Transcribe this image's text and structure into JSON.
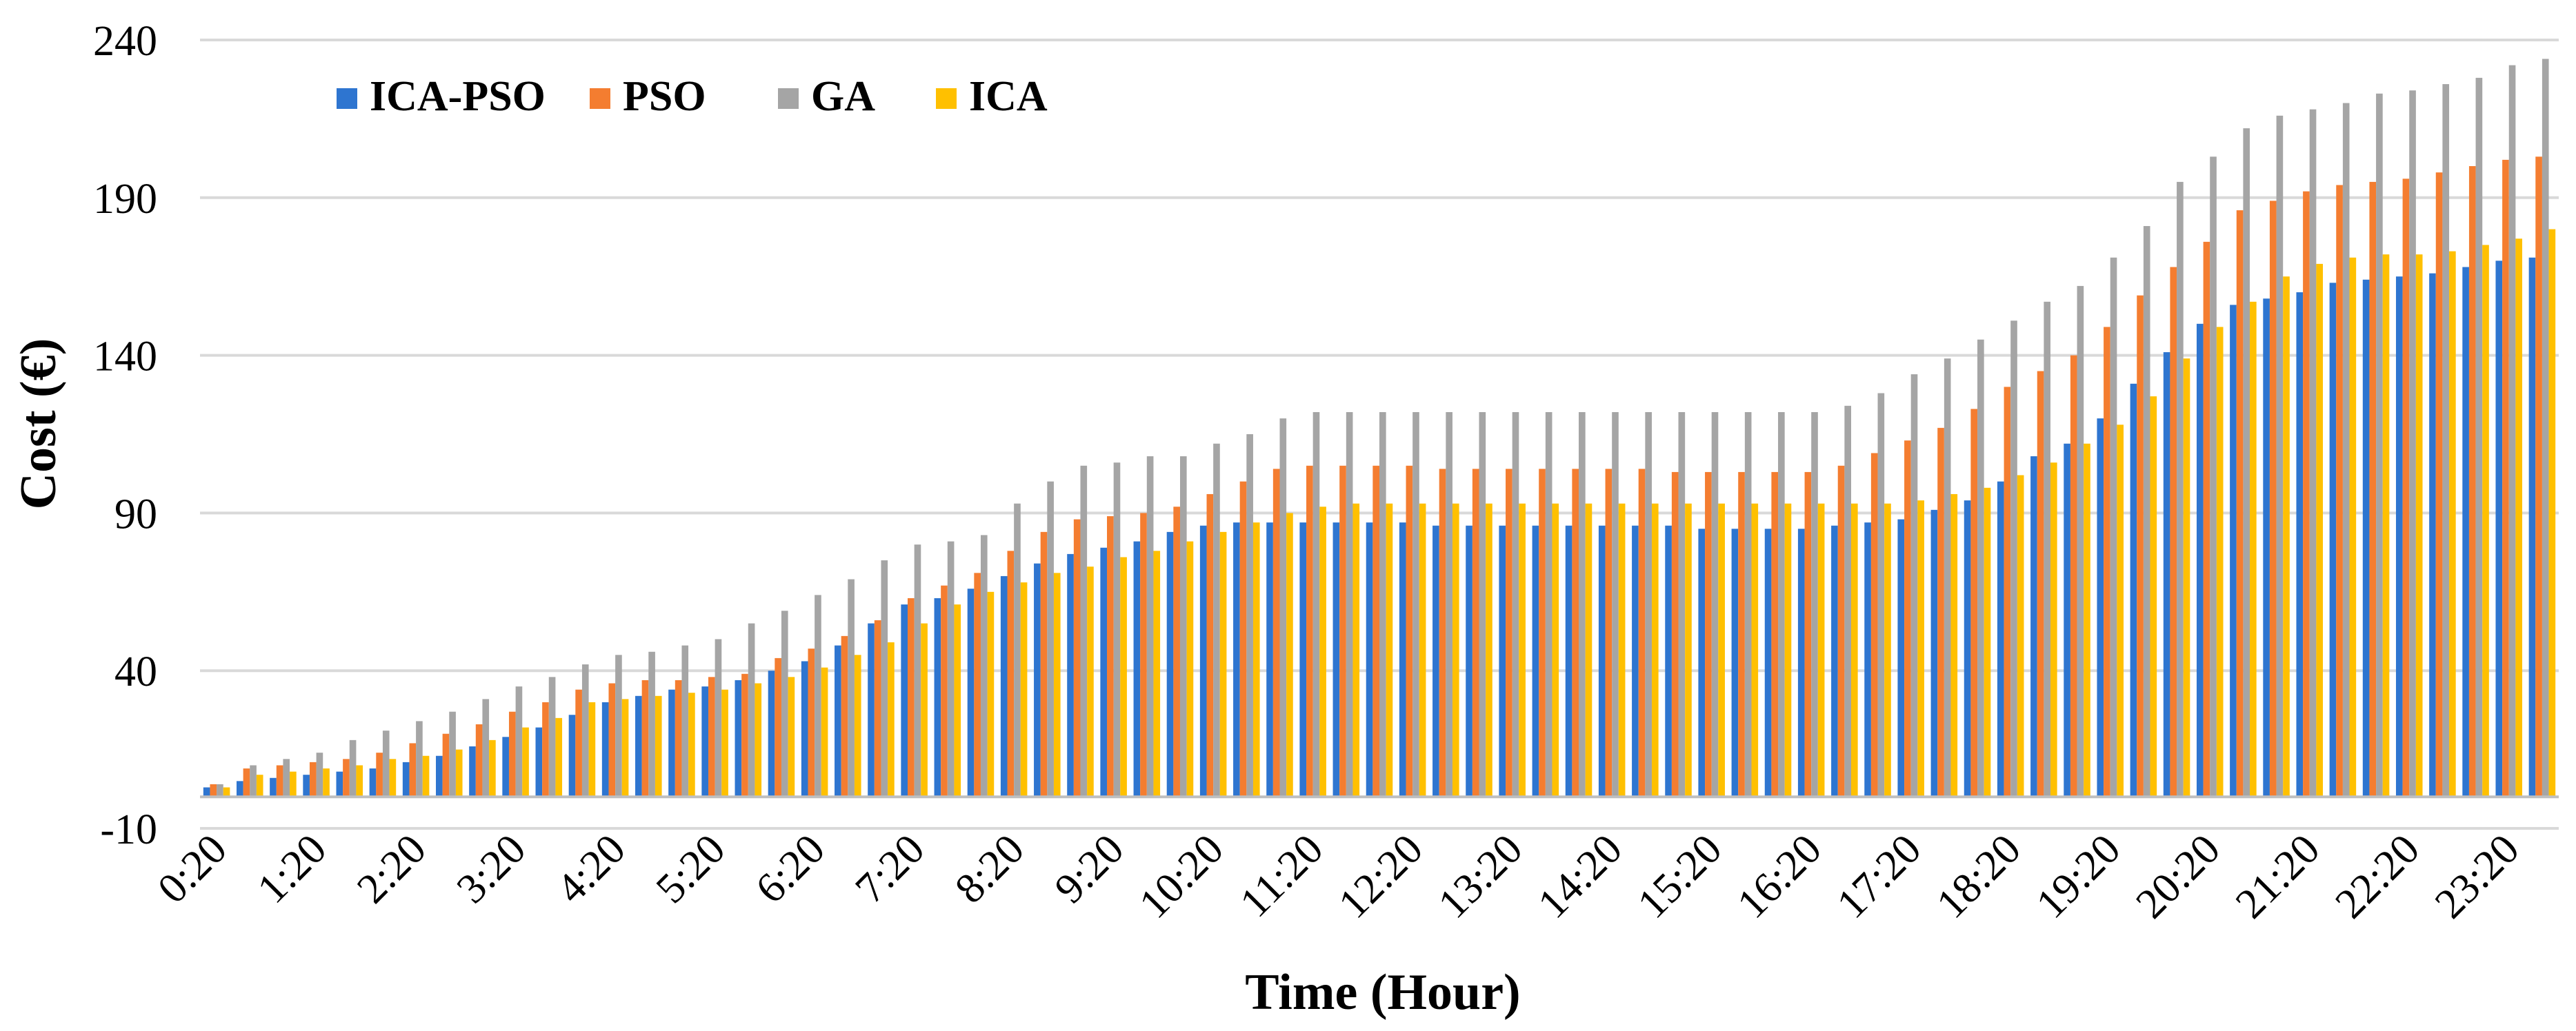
{
  "chart_data": {
    "type": "bar",
    "title": "",
    "xlabel": "Time (Hour)",
    "ylabel": "Cost (€)",
    "ylim": [
      -10,
      240
    ],
    "yticks": [
      -10,
      40,
      90,
      140,
      190,
      240
    ],
    "grid": true,
    "legend_position": "top-left",
    "categories": [
      "0:20",
      "0:40",
      "1:00",
      "1:20",
      "1:40",
      "2:00",
      "2:20",
      "2:40",
      "3:00",
      "3:20",
      "3:40",
      "4:00",
      "4:20",
      "4:40",
      "5:00",
      "5:20",
      "5:40",
      "6:00",
      "6:20",
      "6:40",
      "7:00",
      "7:20",
      "7:40",
      "8:00",
      "8:20",
      "8:40",
      "9:00",
      "9:20",
      "9:40",
      "10:00",
      "10:20",
      "10:40",
      "11:00",
      "11:20",
      "11:40",
      "12:00",
      "12:20",
      "12:40",
      "13:00",
      "13:20",
      "13:40",
      "14:00",
      "14:20",
      "14:40",
      "15:00",
      "15:20",
      "15:40",
      "16:00",
      "16:20",
      "16:40",
      "17:00",
      "17:20",
      "17:40",
      "18:00",
      "18:20",
      "18:40",
      "19:00",
      "19:20",
      "19:40",
      "20:00",
      "20:20",
      "20:40",
      "21:00",
      "21:20",
      "21:40",
      "22:00",
      "22:20",
      "22:40",
      "23:00",
      "23:20",
      "23:40"
    ],
    "x_tick_labels": [
      "0:20",
      "1:20",
      "2:20",
      "3:20",
      "4:20",
      "5:20",
      "6:20",
      "7:20",
      "8:20",
      "9:20",
      "10:20",
      "11:20",
      "12:20",
      "13:20",
      "14:20",
      "15:20",
      "16:20",
      "17:20",
      "18:20",
      "19:20",
      "20:20",
      "21:20",
      "22:20",
      "23:20"
    ],
    "series": [
      {
        "name": "ICA-PSO",
        "color": "#2E75D0",
        "values": [
          3,
          5,
          6,
          7,
          8,
          9,
          11,
          13,
          16,
          19,
          22,
          26,
          30,
          32,
          34,
          35,
          37,
          40,
          43,
          48,
          55,
          61,
          63,
          66,
          70,
          74,
          77,
          79,
          81,
          84,
          86,
          87,
          87,
          87,
          87,
          87,
          87,
          86,
          86,
          86,
          86,
          86,
          86,
          86,
          86,
          85,
          85,
          85,
          85,
          86,
          87,
          88,
          91,
          94,
          100,
          108,
          112,
          120,
          131,
          141,
          150,
          156,
          158,
          160,
          163,
          164,
          165,
          166,
          168,
          170,
          171
        ]
      },
      {
        "name": "PSO",
        "color": "#F47D30",
        "values": [
          4,
          9,
          10,
          11,
          12,
          14,
          17,
          20,
          23,
          27,
          30,
          34,
          36,
          37,
          37,
          38,
          39,
          44,
          47,
          51,
          56,
          63,
          67,
          71,
          78,
          84,
          88,
          89,
          90,
          92,
          96,
          100,
          104,
          105,
          105,
          105,
          105,
          104,
          104,
          104,
          104,
          104,
          104,
          104,
          103,
          103,
          103,
          103,
          103,
          105,
          109,
          113,
          117,
          123,
          130,
          135,
          140,
          149,
          159,
          168,
          176,
          186,
          189,
          192,
          194,
          195,
          196,
          198,
          200,
          202,
          203
        ]
      },
      {
        "name": "GA",
        "color": "#A5A5A5",
        "values": [
          4,
          10,
          12,
          14,
          18,
          21,
          24,
          27,
          31,
          35,
          38,
          42,
          45,
          46,
          48,
          50,
          55,
          59,
          64,
          69,
          75,
          80,
          81,
          83,
          93,
          100,
          105,
          106,
          108,
          108,
          112,
          115,
          120,
          122,
          122,
          122,
          122,
          122,
          122,
          122,
          122,
          122,
          122,
          122,
          122,
          122,
          122,
          122,
          122,
          124,
          128,
          134,
          139,
          145,
          151,
          157,
          162,
          171,
          181,
          195,
          203,
          212,
          216,
          218,
          220,
          223,
          224,
          226,
          228,
          232,
          234
        ]
      },
      {
        "name": "ICA",
        "color": "#FFC000",
        "values": [
          3,
          7,
          8,
          9,
          10,
          12,
          13,
          15,
          18,
          22,
          25,
          30,
          31,
          32,
          33,
          34,
          36,
          38,
          41,
          45,
          49,
          55,
          61,
          65,
          68,
          71,
          73,
          76,
          78,
          81,
          84,
          87,
          90,
          92,
          93,
          93,
          93,
          93,
          93,
          93,
          93,
          93,
          93,
          93,
          93,
          93,
          93,
          93,
          93,
          93,
          93,
          94,
          96,
          98,
          102,
          106,
          112,
          118,
          127,
          139,
          149,
          157,
          165,
          169,
          171,
          172,
          172,
          173,
          175,
          177,
          180
        ]
      }
    ]
  }
}
